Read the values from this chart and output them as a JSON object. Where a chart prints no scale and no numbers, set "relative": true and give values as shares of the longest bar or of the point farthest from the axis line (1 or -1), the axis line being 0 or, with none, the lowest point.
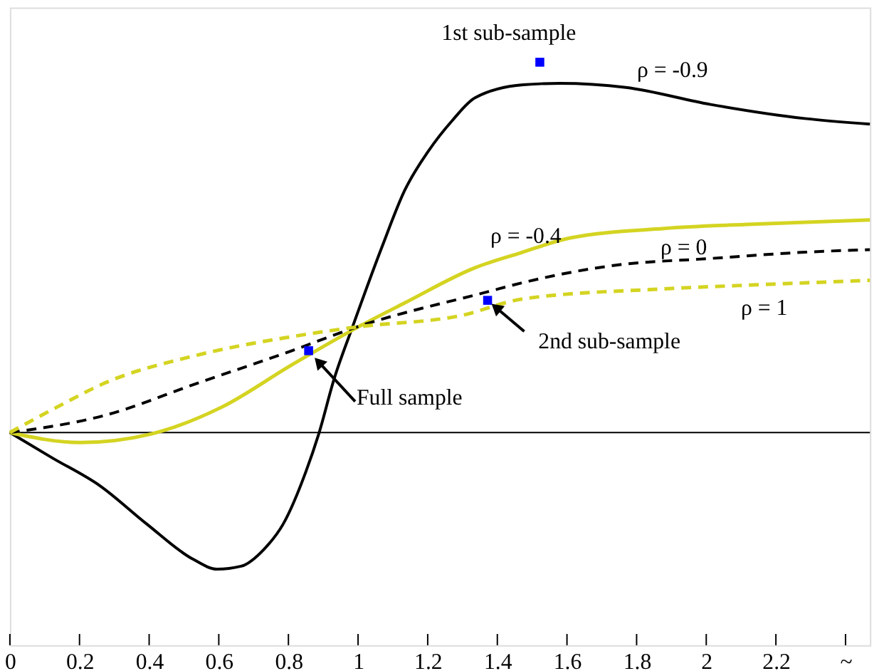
{
  "chart_data": {
    "type": "line",
    "relative": true,
    "tick_labels": "x",
    "grid": false,
    "xlim": [
      0,
      2.47
    ],
    "xticks": [
      0,
      0.2,
      0.4,
      0.6,
      0.8,
      1,
      1.2,
      1.4,
      1.6,
      1.8,
      2,
      2.2,
      {
        "value": 2.4,
        "label": "~"
      }
    ],
    "ref_lines": [
      {
        "axis": "y",
        "value": 0,
        "color": "#000000"
      }
    ],
    "series": [
      {
        "name": "ρ = -0.9",
        "color": "#000000",
        "line_style": "solid",
        "x": [
          0,
          0.121,
          0.259,
          0.393,
          0.526,
          0.595,
          0.664,
          0.729,
          0.785,
          0.85,
          0.887,
          0.931,
          0.984,
          1.069,
          1.134,
          1.202,
          1.271,
          1.336,
          1.474,
          1.579,
          1.769,
          2.012,
          2.283,
          2.47
        ],
        "values": [
          0,
          -0.068,
          -0.144,
          -0.247,
          -0.342,
          -0.369,
          -0.361,
          -0.316,
          -0.247,
          -0.106,
          -0.004,
          0.144,
          0.285,
          0.502,
          0.654,
          0.76,
          0.843,
          0.904,
          0.939,
          0.943,
          0.932,
          0.886,
          0.848,
          0.833
        ]
      },
      {
        "name": "ρ = -0.4",
        "color": "#d4d422",
        "line_style": "solid",
        "x": [
          0,
          0.202,
          0.405,
          0.607,
          0.81,
          1.0,
          1.134,
          1.336,
          1.466,
          1.607,
          1.879,
          2.146,
          2.47
        ],
        "values": [
          0,
          -0.027,
          -0.004,
          0.068,
          0.183,
          0.285,
          0.35,
          0.445,
          0.485,
          0.525,
          0.551,
          0.563,
          0.574
        ]
      },
      {
        "name": "ρ = 0",
        "color": "#000000",
        "line_style": "dashed",
        "x": [
          0,
          0.271,
          0.538,
          0.81,
          0.996,
          1.372,
          1.474,
          1.741,
          2.012,
          2.283,
          2.47
        ],
        "values": [
          0,
          0.046,
          0.133,
          0.221,
          0.285,
          0.38,
          0.405,
          0.452,
          0.47,
          0.487,
          0.494
        ]
      },
      {
        "name": "ρ = 1",
        "color": "#d4d422",
        "line_style": "dashed",
        "x": [
          0,
          0.134,
          0.271,
          0.538,
          0.81,
          0.996,
          1.296,
          1.474,
          1.879,
          2.146,
          2.47
        ],
        "values": [
          0,
          0.068,
          0.133,
          0.209,
          0.259,
          0.285,
          0.316,
          0.361,
          0.388,
          0.399,
          0.411
        ]
      },
      {
        "type": "scatter",
        "marker": "square",
        "color": "#0000ff",
        "x": [
          0.858,
          1.372,
          1.522
        ],
        "values": [
          0.221,
          0.357,
          1.0
        ]
      }
    ],
    "annotations": [
      {
        "text": "Full sample",
        "x": 0.858,
        "y": 0.221
      },
      {
        "text": "2nd sub-sample",
        "x": 1.372,
        "y": 0.357
      },
      {
        "text": "1st sub-sample",
        "x": 1.522,
        "y": 1.0
      }
    ]
  }
}
